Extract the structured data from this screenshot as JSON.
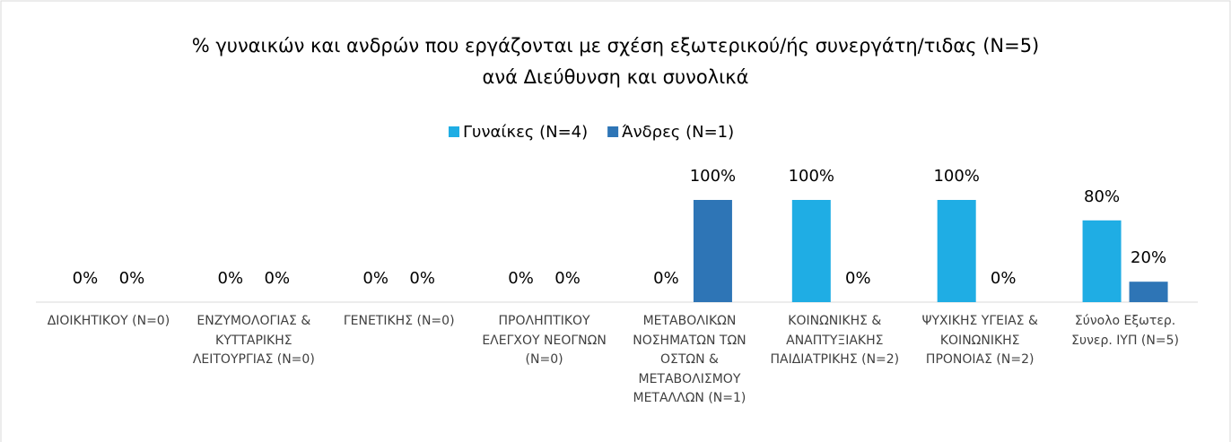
{
  "chart_data": {
    "type": "bar",
    "title": [
      "% γυναικών και ανδρών που εργάζονται με σχέση εξωτερικού/ής συνεργάτη/τιδας (N=5)",
      "ανά Διεύθυνση και συνολικά"
    ],
    "categories": [
      "ΔΙΟΙΚΗΤΙΚΟΥ (N=0)",
      "ΕΝΖΥΜΟΛΟΓΙΑΣ & ΚΥΤΤΑΡΙΚΗΣ ΛΕΙΤΟΥΡΓΙΑΣ (N=0)",
      "ΓΕΝΕΤΙΚΗΣ (N=0)",
      "ΠΡΟΛΗΠΤΙΚΟΥ ΕΛΕΓΧΟΥ ΝΕΟΓΝΩΝ (N=0)",
      "ΜΕΤΑΒΟΛΙΚΩΝ ΝΟΣΗΜΑΤΩΝ ΤΩΝ ΟΣΤΩΝ & ΜΕΤΑΒΟΛΙΣΜΟΥ ΜΕΤΑΛΛΩΝ (N=1)",
      "ΚΟΙΝΩΝΙΚΗΣ & ΑΝΑΠΤΥΞΙΑΚΗΣ ΠΑΙΔΙΑΤΡΙΚΗΣ (N=2)",
      "ΨΥΧΙΚΗΣ ΥΓΕΙΑΣ & ΚΟΙΝΩΝΙΚΗΣ ΠΡΟΝΟΙΑΣ (N=2)",
      "Σύνολο Εξωτερ. Συνερ. ΙΥΠ (N=5)"
    ],
    "series": [
      {
        "name": "Γυναίκες (N=4)",
        "color": "#1fade4",
        "values": [
          0,
          0,
          0,
          0,
          0,
          100,
          100,
          80
        ],
        "value_labels": [
          "0%",
          "0%",
          "0%",
          "0%",
          "0%",
          "100%",
          "100%",
          "80%"
        ]
      },
      {
        "name": "Άνδρες (N=1)",
        "color": "#2e75b6",
        "values": [
          0,
          0,
          0,
          0,
          100,
          0,
          0,
          20
        ],
        "value_labels": [
          "0%",
          "0%",
          "0%",
          "0%",
          "100%",
          "0%",
          "0%",
          "20%"
        ]
      }
    ],
    "ylim": [
      0,
      100
    ],
    "legend": "top"
  }
}
